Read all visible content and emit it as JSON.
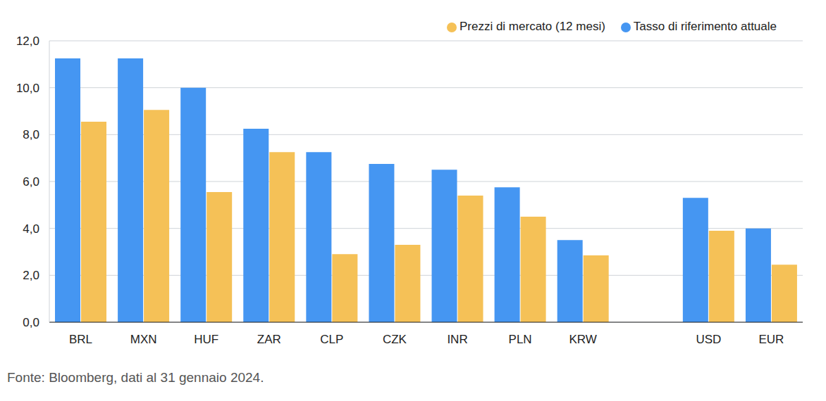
{
  "chart_data": {
    "type": "bar",
    "categories": [
      "BRL",
      "MXN",
      "HUF",
      "ZAR",
      "CLP",
      "CZK",
      "INR",
      "PLN",
      "KRW",
      null,
      "USD",
      "EUR"
    ],
    "series": [
      {
        "name": "Tasso di riferimento attuale",
        "color": "#4596f2",
        "values": [
          11.25,
          11.25,
          10.0,
          8.25,
          7.25,
          6.75,
          6.5,
          5.75,
          3.5,
          null,
          5.3,
          4.0
        ]
      },
      {
        "name": "Prezzi di mercato (12 mesi)",
        "color": "#f5c157",
        "values": [
          8.55,
          9.05,
          5.55,
          7.25,
          2.9,
          3.3,
          5.4,
          4.5,
          2.85,
          null,
          3.9,
          2.45
        ]
      }
    ],
    "ylim": [
      0,
      12
    ],
    "yticks": [
      {
        "value": 0,
        "label": "0,0"
      },
      {
        "value": 2,
        "label": "2,0"
      },
      {
        "value": 4,
        "label": "4,0"
      },
      {
        "value": 6,
        "label": "6,0"
      },
      {
        "value": 8,
        "label": "8,0"
      },
      {
        "value": 10,
        "label": "10,0"
      },
      {
        "value": 12,
        "label": "12,0"
      }
    ],
    "grid": true,
    "legend": "top-right",
    "source": "Fonte: Bloomberg, dati al 31 gennaio 2024."
  }
}
